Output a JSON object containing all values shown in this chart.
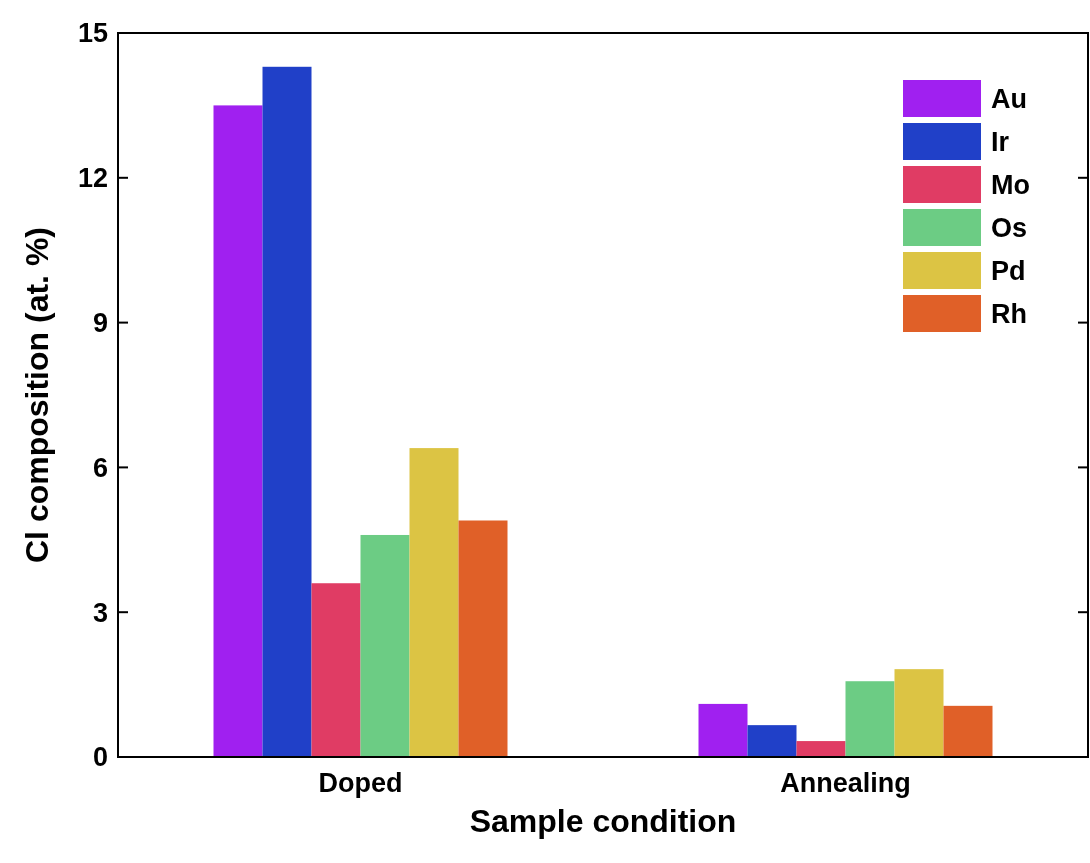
{
  "chart_data": {
    "type": "bar",
    "xlabel": "Sample condition",
    "ylabel": "Cl composition (at. %)",
    "categories": [
      "Doped",
      "Annealing"
    ],
    "series": [
      {
        "name": "Au",
        "color": "#a020f0",
        "values": [
          13.5,
          1.1
        ]
      },
      {
        "name": "Ir",
        "color": "#2040c8",
        "values": [
          14.3,
          0.66
        ]
      },
      {
        "name": "Mo",
        "color": "#e03c64",
        "values": [
          3.6,
          0.33
        ]
      },
      {
        "name": "Os",
        "color": "#6ccc84",
        "values": [
          4.6,
          1.57
        ]
      },
      {
        "name": "Pd",
        "color": "#dcc444",
        "values": [
          6.4,
          1.82
        ]
      },
      {
        "name": "Rh",
        "color": "#e06028",
        "values": [
          4.9,
          1.06
        ]
      }
    ],
    "ylim": [
      0,
      15
    ],
    "yticks": [
      0,
      3,
      6,
      9,
      12,
      15
    ],
    "legend": "top right",
    "grid": false
  }
}
